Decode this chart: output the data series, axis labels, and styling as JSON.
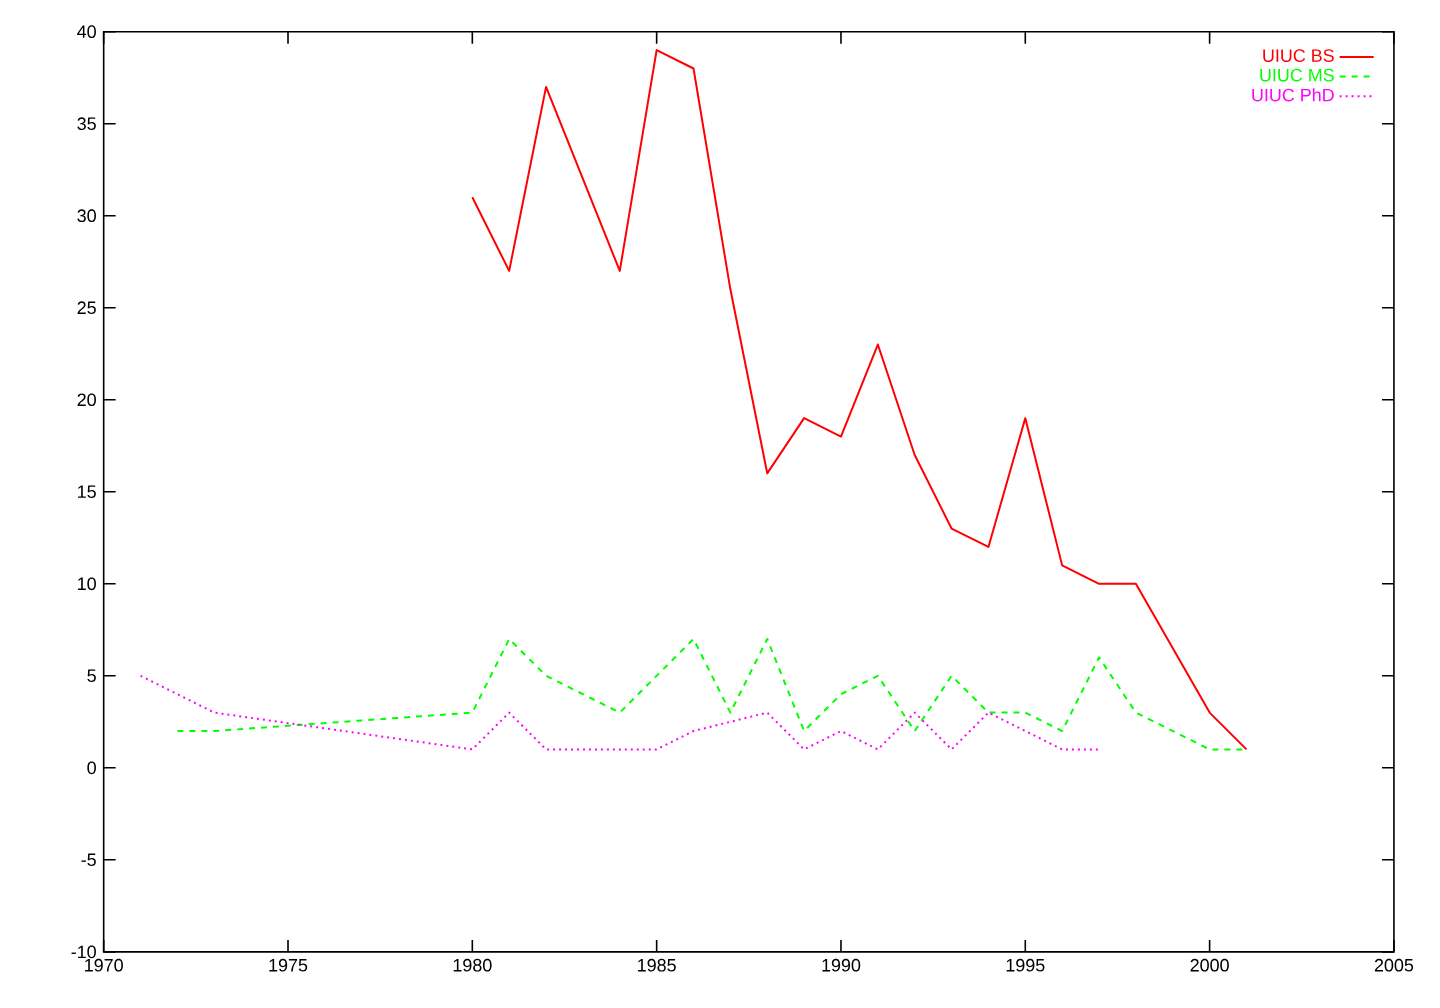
{
  "chart_data": {
    "type": "line",
    "series": [
      {
        "name": "UIUC BS",
        "color": "#ff0000",
        "line_style": "solid",
        "x": [
          1980,
          1981,
          1982,
          1984,
          1985,
          1986,
          1987,
          1988,
          1989,
          1990,
          1991,
          1992,
          1993,
          1994,
          1995,
          1996,
          1997,
          1998,
          2000,
          2001
        ],
        "values": [
          31,
          27,
          37,
          27,
          39,
          38,
          26,
          16,
          19,
          18,
          23,
          17,
          13,
          12,
          19,
          11,
          10,
          10,
          3,
          1
        ]
      },
      {
        "name": "UIUC MS",
        "color": "#00ff00",
        "line_style": "dashed",
        "x": [
          1972,
          1973,
          1980,
          1981,
          1982,
          1984,
          1986,
          1987,
          1988,
          1989,
          1990,
          1991,
          1992,
          1993,
          1994,
          1995,
          1996,
          1997,
          1998,
          2000,
          2001
        ],
        "values": [
          2,
          2,
          3,
          7,
          5,
          3,
          7,
          3,
          7,
          2,
          4,
          5,
          2,
          5,
          3,
          3,
          2,
          6,
          3,
          1,
          1
        ]
      },
      {
        "name": "UIUC PhD",
        "color": "#ff00ff",
        "line_style": "dotted",
        "x": [
          1971,
          1973,
          1980,
          1981,
          1982,
          1985,
          1986,
          1988,
          1989,
          1990,
          1991,
          1992,
          1993,
          1994,
          1996,
          1997
        ],
        "values": [
          5,
          3,
          1,
          3,
          1,
          1,
          2,
          3,
          1,
          2,
          1,
          3,
          1,
          3,
          1,
          1
        ]
      }
    ],
    "xlim": [
      1970,
      2005
    ],
    "xticks": [
      1970,
      1975,
      1980,
      1985,
      1990,
      1995,
      2000,
      2005
    ],
    "ylim": [
      -10,
      40
    ],
    "yticks": [
      -10,
      -5,
      0,
      5,
      10,
      15,
      20,
      25,
      30,
      35,
      40
    ],
    "legend": "top right",
    "grid": false,
    "marker": "none"
  }
}
